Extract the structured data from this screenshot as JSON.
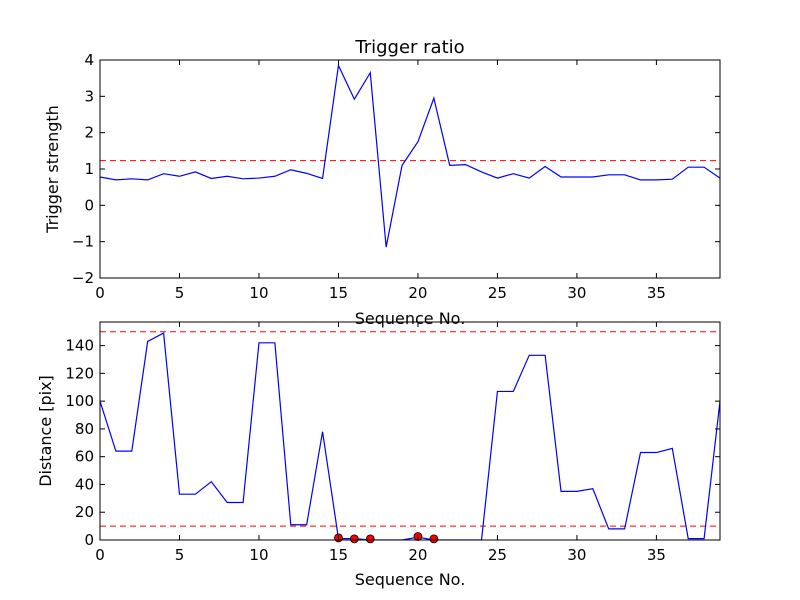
{
  "chart_data": [
    {
      "type": "line",
      "title": "Trigger ratio",
      "xlabel": "Sequence No.",
      "ylabel": "Trigger strength",
      "xlim": [
        0,
        39
      ],
      "ylim": [
        -2,
        4
      ],
      "xticks": [
        0,
        5,
        10,
        15,
        20,
        25,
        30,
        35
      ],
      "yticks": [
        -2,
        -1,
        0,
        1,
        2,
        3,
        4
      ],
      "yticklabels": [
        "−2",
        "−1",
        "0",
        "1",
        "2",
        "3",
        "4"
      ],
      "grid": false,
      "series": [
        {
          "color": "#0000ff",
          "x": [
            0,
            1,
            2,
            3,
            4,
            5,
            6,
            7,
            8,
            9,
            10,
            11,
            12,
            13,
            14,
            15,
            16,
            17,
            18,
            19,
            20,
            21,
            22,
            23,
            24,
            25,
            26,
            27,
            28,
            29,
            30,
            31,
            32,
            33,
            34,
            35,
            36,
            37,
            38,
            39
          ],
          "y": [
            0.78,
            0.7,
            0.73,
            0.7,
            0.87,
            0.8,
            0.92,
            0.74,
            0.8,
            0.73,
            0.75,
            0.8,
            0.98,
            0.88,
            0.74,
            3.85,
            2.92,
            3.65,
            -1.15,
            1.1,
            1.75,
            2.95,
            1.1,
            1.12,
            0.92,
            0.75,
            0.87,
            0.75,
            1.07,
            0.78,
            0.78,
            0.78,
            0.84,
            0.84,
            0.7,
            0.7,
            0.72,
            1.05,
            1.05,
            0.75
          ]
        }
      ],
      "hlines": [
        {
          "y": 1.23,
          "color": "#ff0000",
          "style": "dashed"
        }
      ]
    },
    {
      "type": "line",
      "title": "",
      "xlabel": "Sequence No.",
      "ylabel": "Distance [pix]",
      "xlim": [
        0,
        39
      ],
      "ylim": [
        0,
        157
      ],
      "xticks": [
        0,
        5,
        10,
        15,
        20,
        25,
        30,
        35
      ],
      "yticks": [
        0,
        20,
        40,
        60,
        80,
        100,
        120,
        140
      ],
      "yticklabels": [
        "0",
        "20",
        "40",
        "60",
        "80",
        "100",
        "120",
        "140"
      ],
      "grid": false,
      "series": [
        {
          "color": "#0000ff",
          "x": [
            0,
            1,
            2,
            3,
            4,
            5,
            6,
            7,
            8,
            9,
            10,
            11,
            12,
            13,
            14,
            15,
            16,
            17,
            18,
            19,
            20,
            21,
            22,
            23,
            24,
            25,
            26,
            27,
            28,
            29,
            30,
            31,
            32,
            33,
            34,
            35,
            36,
            37,
            38,
            39
          ],
          "y": [
            100,
            64,
            64,
            143,
            149,
            33,
            33,
            42,
            27,
            27,
            142,
            142,
            11,
            11,
            78,
            1,
            1,
            0,
            0,
            0,
            2,
            0,
            0,
            0,
            0,
            107,
            107,
            133,
            133,
            35,
            35,
            37,
            8,
            8,
            63,
            63,
            66,
            1,
            1,
            100
          ]
        }
      ],
      "markers": {
        "color": "#ff0000",
        "edge": "#000000",
        "x": [
          15,
          16,
          17,
          20,
          21
        ],
        "y": [
          1.5,
          0.8,
          0.8,
          2.5,
          0.8
        ]
      },
      "hlines": [
        {
          "y": 150,
          "color": "#ff0000",
          "style": "dashed"
        },
        {
          "y": 10,
          "color": "#ff0000",
          "style": "dashed"
        }
      ]
    }
  ]
}
